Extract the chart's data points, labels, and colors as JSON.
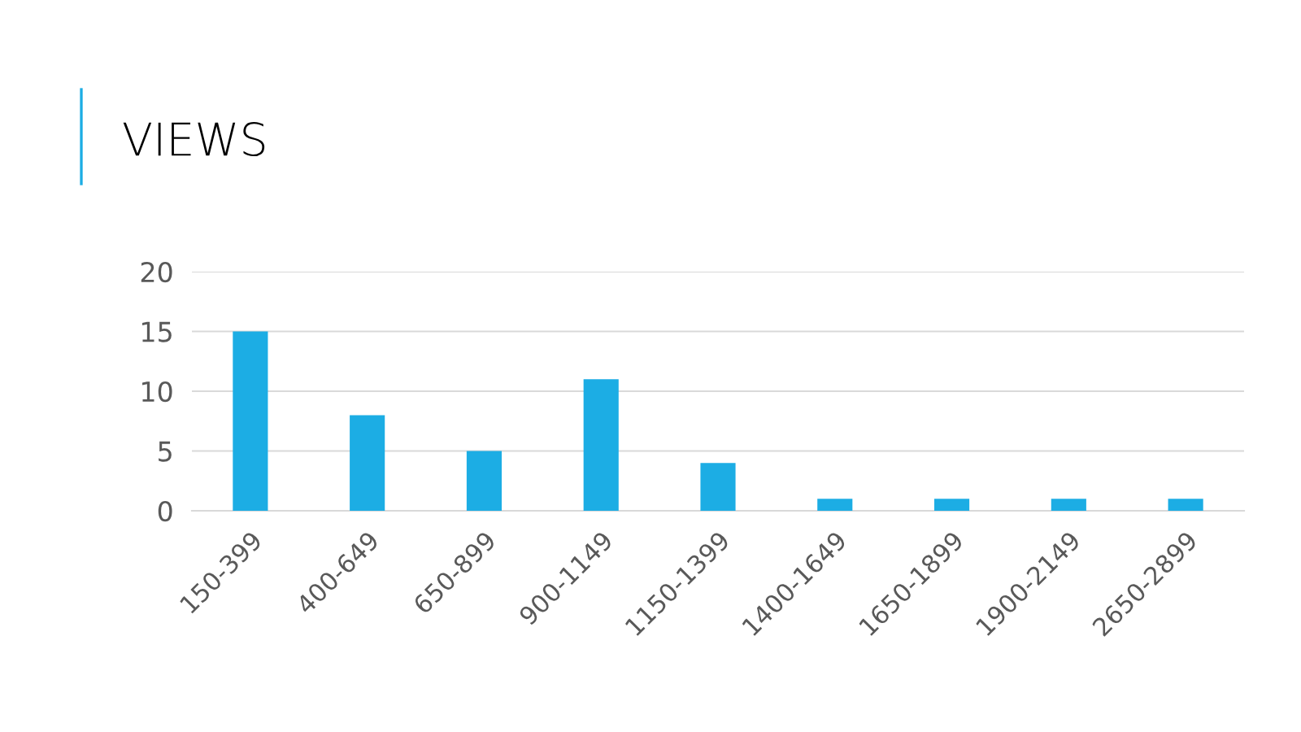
{
  "chart_data": {
    "type": "bar",
    "title": "VIEWS",
    "categories": [
      "150-399",
      "400-649",
      "650-899",
      "900-1149",
      "1150-1399",
      "1400-1649",
      "1650-1899",
      "1900-2149",
      "2650-2899"
    ],
    "values": [
      15,
      8,
      5,
      11,
      4,
      1,
      1,
      1,
      1
    ],
    "color": "#1cade4",
    "ylim": [
      0,
      20
    ],
    "yticks": [
      0,
      5,
      10,
      15,
      20
    ],
    "grid": "y"
  }
}
